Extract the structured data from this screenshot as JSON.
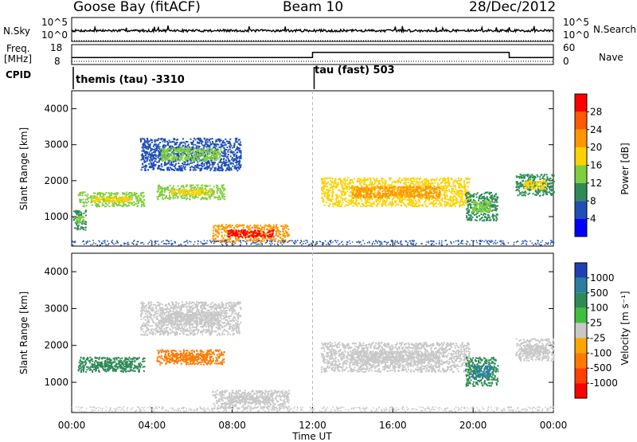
{
  "header": {
    "station": "Goose Bay (fitACF)",
    "beam": "Beam 10",
    "date": "28/Dec/2012"
  },
  "noise_panel": {
    "left_label": "N.Sky",
    "right_label": "N.Search",
    "left_ticks": [
      "10^5",
      "10^0"
    ],
    "right_ticks": [
      "10^5",
      "10^0"
    ]
  },
  "freq_panel": {
    "left_label_line1": "Freq.",
    "left_label_line2": "[MHz]",
    "right_label": "Nave",
    "left_ticks": [
      "18",
      "8"
    ],
    "right_ticks": [
      "60",
      "0"
    ]
  },
  "cpid_panel": {
    "label": "CPID",
    "modes": [
      {
        "text": "themis (tau) -3310",
        "start_hour": 0
      },
      {
        "text": "tau (fast) 503",
        "start_hour": 12
      }
    ]
  },
  "power_panel": {
    "ylabel": "Slant Range [km]",
    "colorbar_label": "Power [dB]",
    "colorbar_ticks": [
      "28",
      "24",
      "20",
      "16",
      "12",
      "8",
      "4"
    ],
    "colorbar_colors": [
      "#ff0000",
      "#ff5a00",
      "#ff9600",
      "#ffd200",
      "#7fce3e",
      "#2e8b57",
      "#1f4fb4",
      "#0000ff"
    ]
  },
  "velocity_panel": {
    "ylabel": "Slant Range [km]",
    "colorbar_label": "Velocity [m s⁻¹]",
    "colorbar_ticks": [
      "1000",
      "500",
      "100",
      "25",
      "-25",
      "-100",
      "-500",
      "-1000"
    ],
    "colorbar_colors": [
      "#1f3fb4",
      "#2a7fa0",
      "#2e8b57",
      "#3fbf3f",
      "#c8c8c8",
      "#ffa500",
      "#ff7a00",
      "#ff4000",
      "#ff0000"
    ]
  },
  "xaxis": {
    "label": "Time UT",
    "ticks": [
      "00:00",
      "04:00",
      "08:00",
      "12:00",
      "16:00",
      "20:00",
      "00:00"
    ]
  },
  "chart_data": {
    "type": "heatmap",
    "x_range_hours": [
      0,
      24
    ],
    "y_range_km": [
      180,
      4500
    ],
    "y_ticks": [
      1000,
      2000,
      3000,
      4000
    ],
    "frequency_mhz": [
      {
        "start": 0,
        "end": 12,
        "value": 11
      },
      {
        "start": 12,
        "end": 21.8,
        "value": 14.5
      },
      {
        "start": 21.8,
        "end": 24,
        "value": 11
      }
    ],
    "power_regions": [
      {
        "start": 0.3,
        "end": 3.6,
        "low_km": 1300,
        "high_km": 1700,
        "db": 14
      },
      {
        "start": 0.05,
        "end": 0.7,
        "low_km": 650,
        "high_km": 1200,
        "db": 9
      },
      {
        "start": 4.2,
        "end": 7.6,
        "low_km": 1500,
        "high_km": 1900,
        "db": 14
      },
      {
        "start": 3.4,
        "end": 8.4,
        "low_km": 2300,
        "high_km": 3200,
        "db": 8
      },
      {
        "start": 7.0,
        "end": 10.8,
        "low_km": 300,
        "high_km": 800,
        "db": 24
      },
      {
        "start": 12.4,
        "end": 19.8,
        "low_km": 1300,
        "high_km": 2100,
        "db": 18
      },
      {
        "start": 19.6,
        "end": 21.2,
        "low_km": 900,
        "high_km": 1700,
        "db": 10
      },
      {
        "start": 22.1,
        "end": 24,
        "low_km": 1600,
        "high_km": 2200,
        "db": 12
      }
    ],
    "velocity_regions": [
      {
        "start": 0.3,
        "end": 3.6,
        "low_km": 1300,
        "high_km": 1700,
        "v": 150
      },
      {
        "start": 4.2,
        "end": 7.6,
        "low_km": 1500,
        "high_km": 1900,
        "v": -200
      },
      {
        "start": 3.4,
        "end": 8.4,
        "low_km": 2300,
        "high_km": 3200,
        "v": 0
      },
      {
        "start": 7.0,
        "end": 10.8,
        "low_km": 300,
        "high_km": 800,
        "v": 0
      },
      {
        "start": 12.4,
        "end": 19.8,
        "low_km": 1300,
        "high_km": 2100,
        "v": 0
      },
      {
        "start": 19.6,
        "end": 21.2,
        "low_km": 900,
        "high_km": 1700,
        "v": 300
      },
      {
        "start": 22.1,
        "end": 24,
        "low_km": 1600,
        "high_km": 2200,
        "v": 0
      }
    ]
  }
}
